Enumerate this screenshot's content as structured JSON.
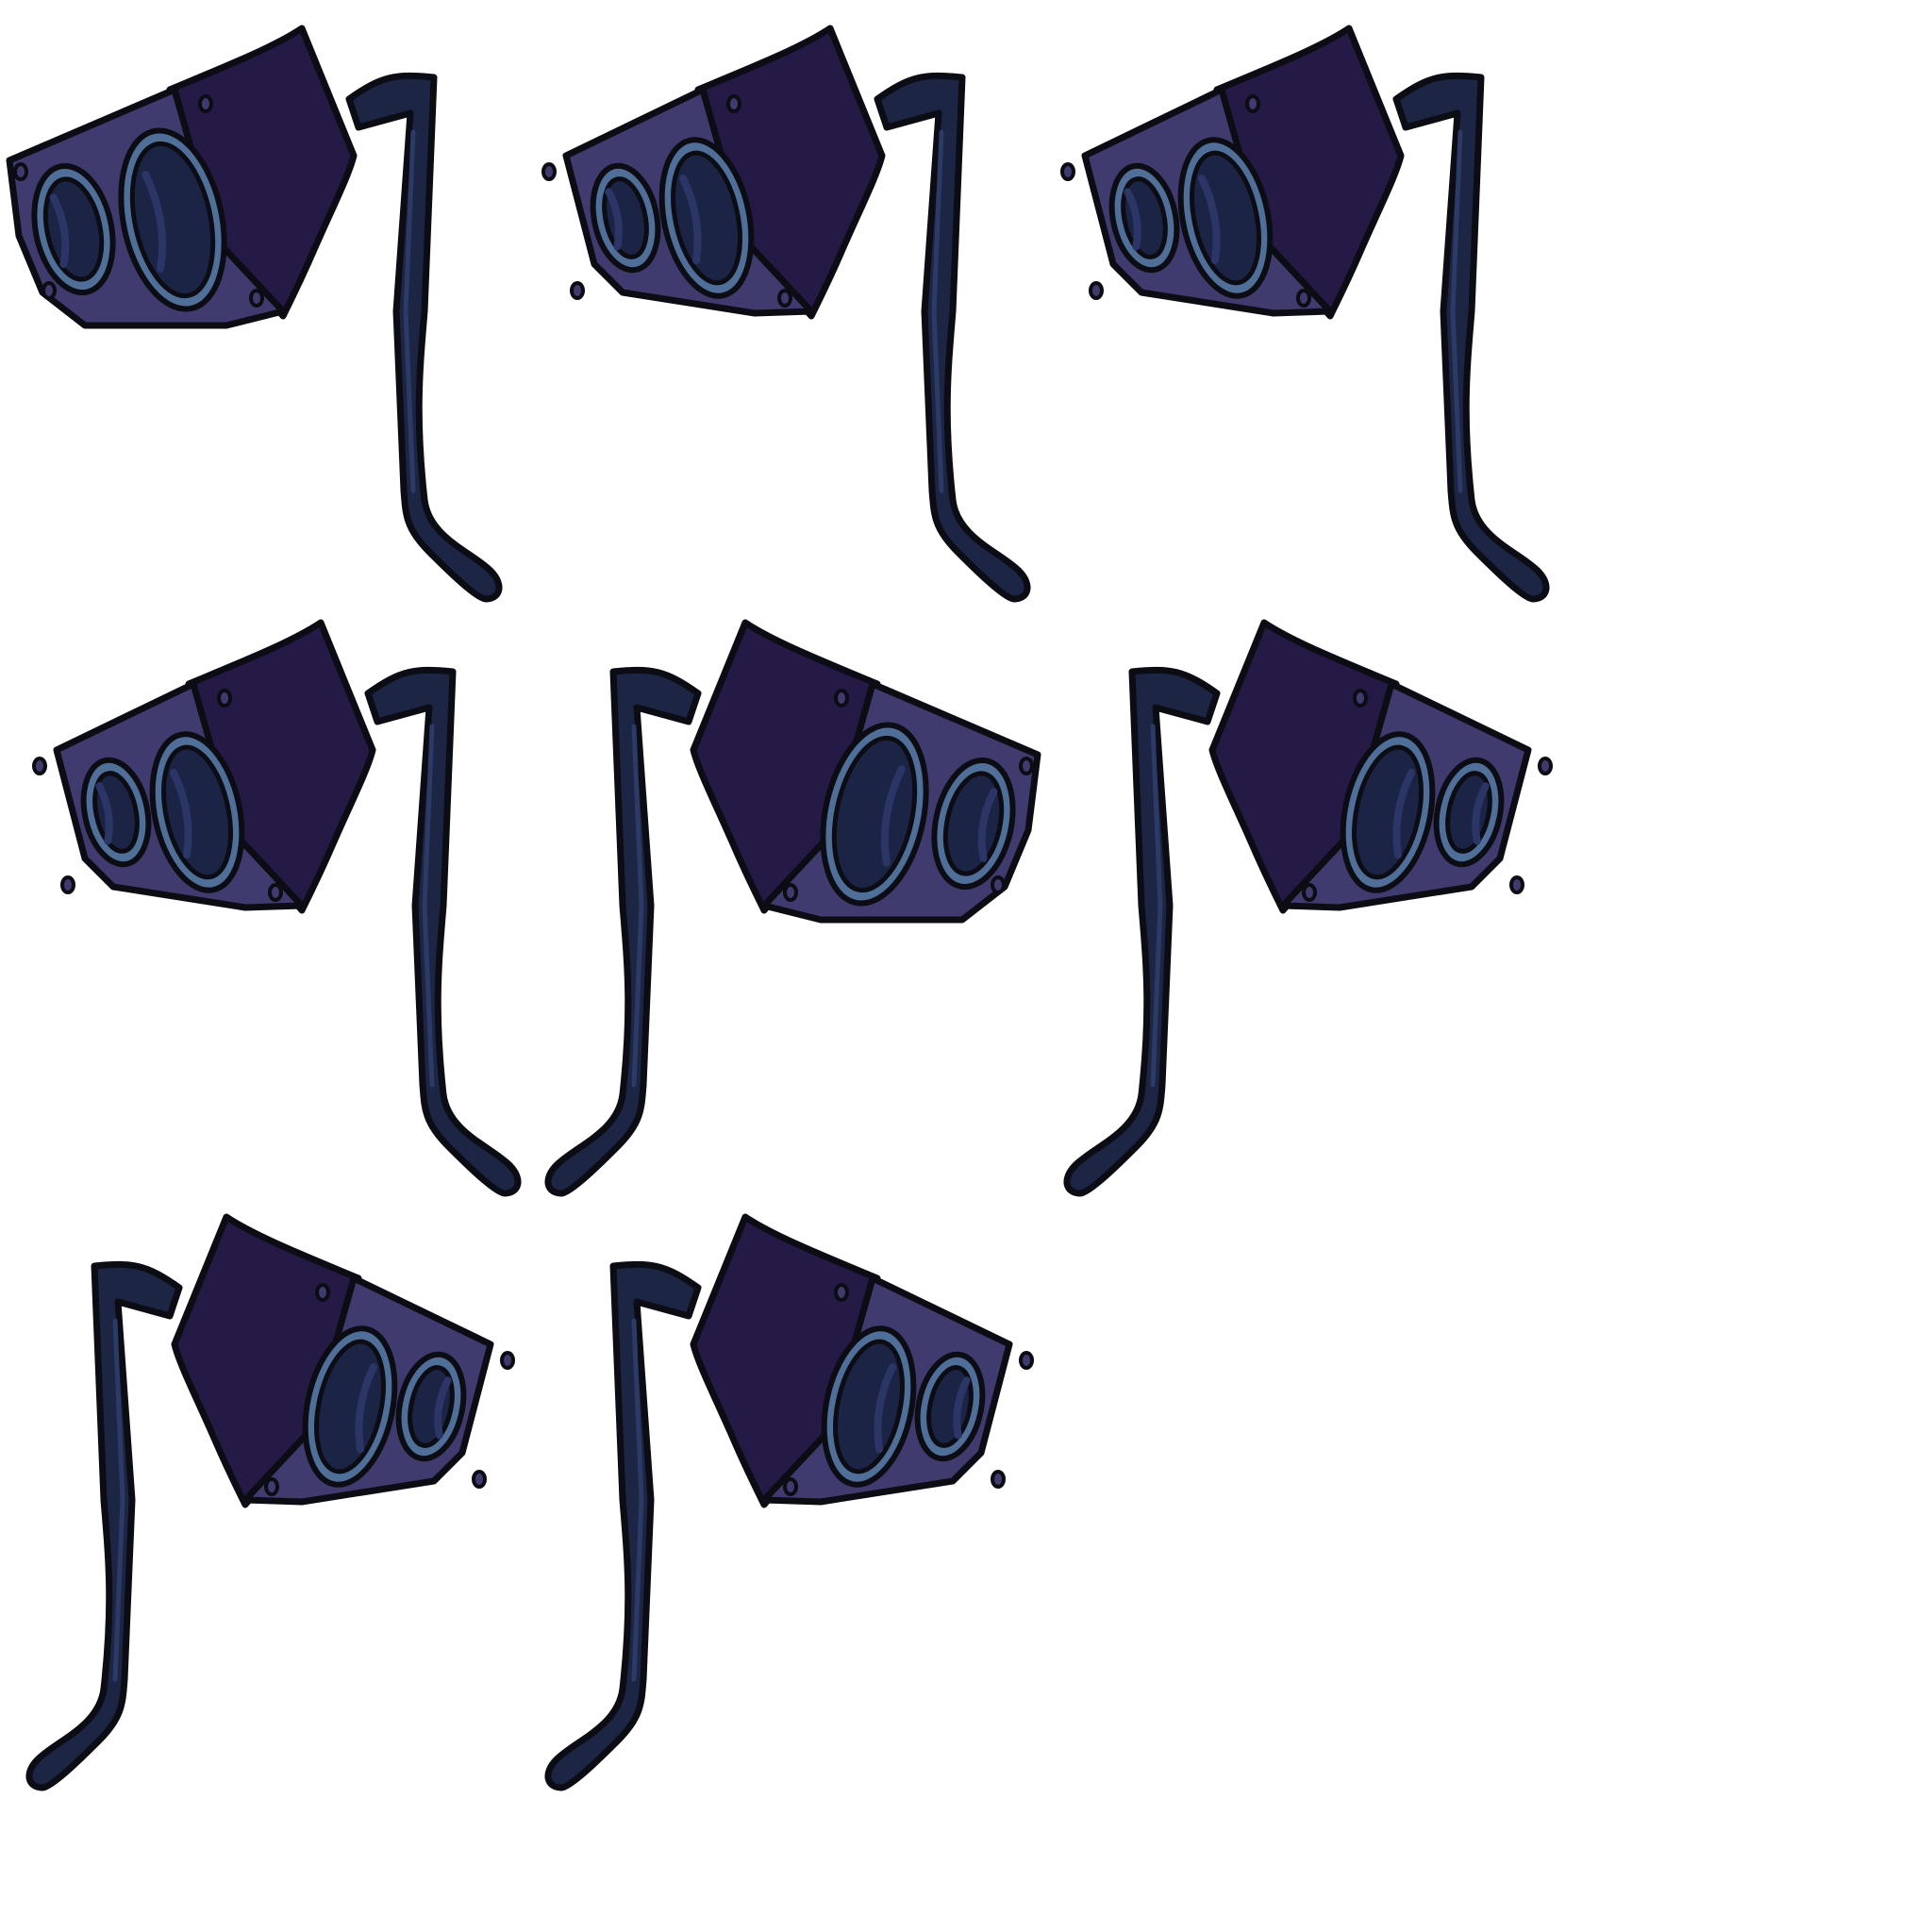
{
  "sprite_sheet": {
    "subject": "speaker-on-stand",
    "frame_count": 8,
    "colors": {
      "background": "#ffffff",
      "outline": "#0c0c14",
      "pole": "#1c2544",
      "pole_highlight": "#2c3a66",
      "box_face": "#403b6e",
      "box_side": "#251a45",
      "speaker_ring": "#4f6f98",
      "speaker_cone": "#1c2446",
      "cone_highlight": "#2b3566"
    },
    "frames": [
      {
        "variant": "A",
        "facing": "left"
      },
      {
        "variant": "B",
        "facing": "left"
      },
      {
        "variant": "B",
        "facing": "left"
      },
      {
        "variant": "B",
        "facing": "left"
      },
      {
        "variant": "A",
        "facing": "right"
      },
      {
        "variant": "B",
        "facing": "right"
      },
      {
        "variant": "B",
        "facing": "right"
      },
      {
        "variant": "B",
        "facing": "right"
      }
    ]
  }
}
